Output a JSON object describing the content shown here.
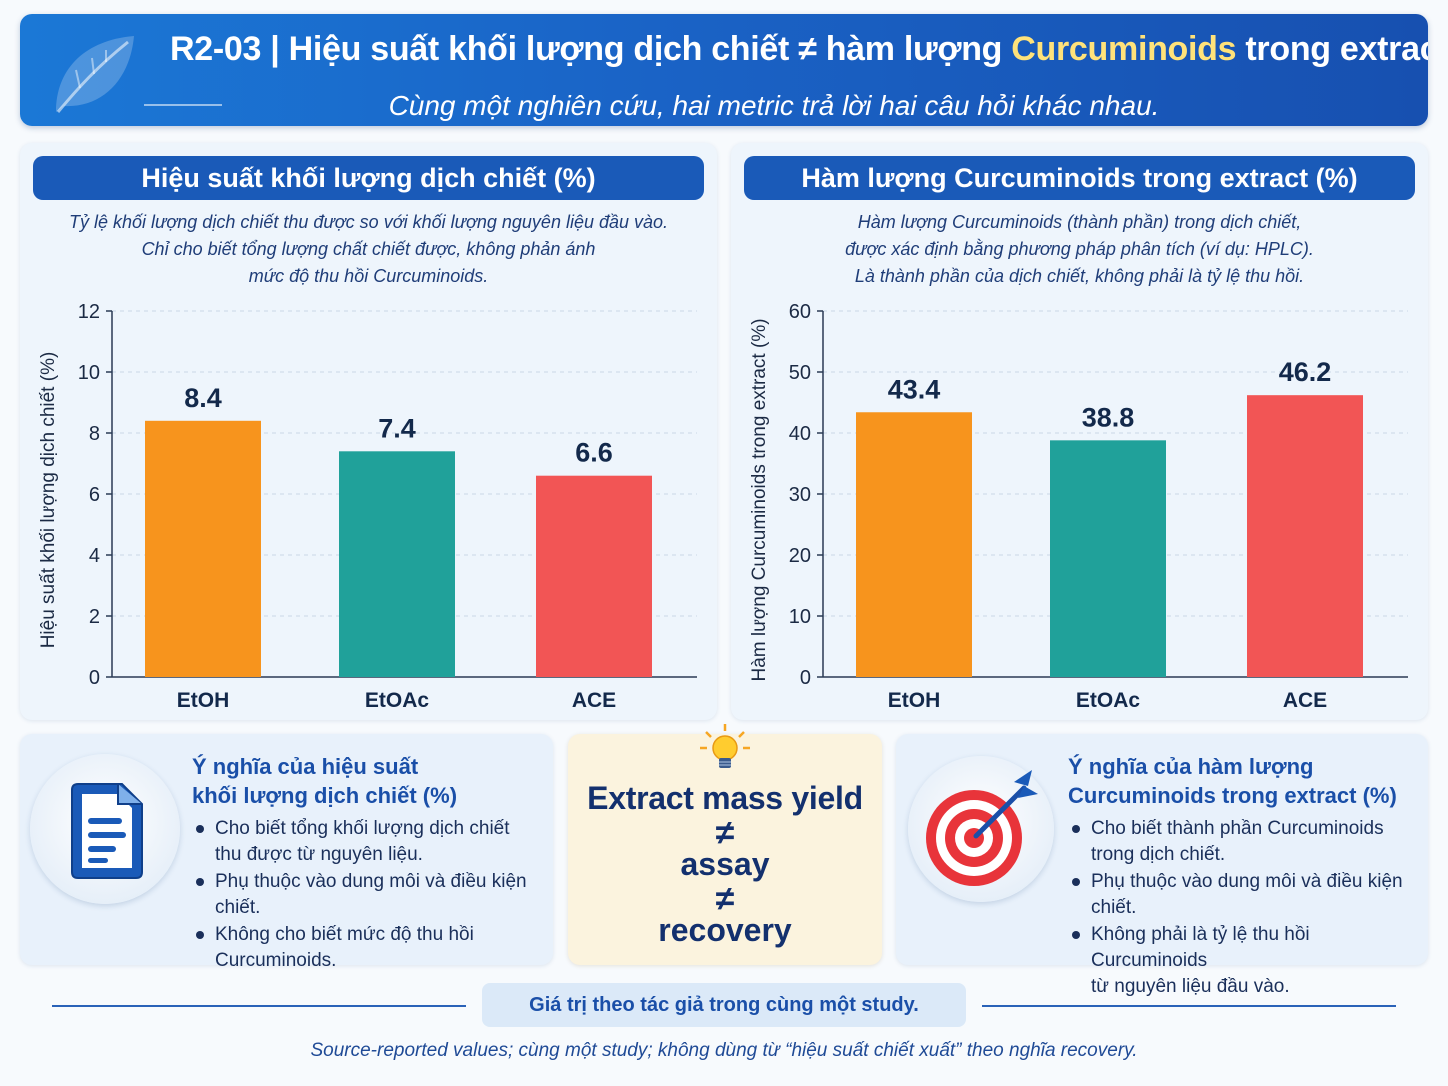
{
  "header": {
    "title_pre": "R2-03 | Hiệu suất khối lượng dịch chiết ≠ hàm lượng ",
    "title_highlight": "Curcuminoids",
    "title_post": " trong extract",
    "subtitle": "Cùng một nghiên cứu, hai metric trả lời hai câu hỏi khác nhau.",
    "icon": "leaf-icon"
  },
  "colors": {
    "header_blue": "#1a63c6",
    "title_highlight": "#ffe27a",
    "bar_etoh": "#f7941d",
    "bar_etoac": "#20a19a",
    "bar_ace": "#f25555"
  },
  "panels": {
    "left": {
      "heading": "Hiệu suất khối lượng dịch chiết (%)",
      "desc": [
        "Tỷ lệ khối lượng dịch chiết thu được so với khối lượng nguyên liệu đầu vào.",
        "Chỉ cho biết tổng lượng chất chiết được, không phản ánh",
        "mức độ thu hồi Curcuminoids."
      ]
    },
    "right": {
      "heading": "Hàm lượng Curcuminoids trong extract (%)",
      "desc": [
        "Hàm lượng Curcuminoids (thành phần) trong dịch chiết,",
        "được xác định bằng phương pháp phân tích (ví dụ: HPLC).",
        "Là thành phần của dịch chiết, không phải là tỷ lệ thu hồi."
      ]
    }
  },
  "chart_data": [
    {
      "type": "bar",
      "title": "Hiệu suất khối lượng dịch chiết (%)",
      "xlabel": "",
      "ylabel": "Hiệu suất khối lượng dịch chiết (%)",
      "categories": [
        "EtOH",
        "EtOAc",
        "ACE"
      ],
      "values": [
        8.4,
        7.4,
        6.6
      ],
      "data_labels": [
        "8.4",
        "7.4",
        "6.6"
      ],
      "colors": [
        "#f7941d",
        "#20a19a",
        "#f25555"
      ],
      "ylim": [
        0,
        12
      ],
      "yticks": [
        0,
        2,
        4,
        6,
        8,
        10,
        12
      ],
      "grid": true,
      "legend": "none"
    },
    {
      "type": "bar",
      "title": "Hàm lượng Curcuminoids trong extract (%)",
      "xlabel": "",
      "ylabel": "Hàm lượng Curcuminoids trong extract (%)",
      "categories": [
        "EtOH",
        "EtOAc",
        "ACE"
      ],
      "values": [
        43.4,
        38.8,
        46.2
      ],
      "data_labels": [
        "43.4",
        "38.8",
        "46.2"
      ],
      "colors": [
        "#f7941d",
        "#20a19a",
        "#f25555"
      ],
      "ylim": [
        0,
        60
      ],
      "yticks": [
        0,
        10,
        20,
        30,
        40,
        50,
        60
      ],
      "grid": true,
      "legend": "none"
    }
  ],
  "cards": {
    "left": {
      "icon": "document-icon",
      "title": [
        "Ý nghĩa của hiệu suất",
        "khối lượng dịch chiết (%)"
      ],
      "bullets": [
        [
          "Cho biết tổng khối lượng dịch chiết",
          "thu được từ nguyên liệu."
        ],
        [
          "Phụ thuộc vào dung môi và điều kiện chiết."
        ],
        [
          "Không cho biết mức độ thu hồi",
          "Curcuminoids."
        ]
      ]
    },
    "right": {
      "icon": "target-icon",
      "title": [
        "Ý nghĩa của hàm lượng",
        "Curcuminoids trong extract (%)"
      ],
      "bullets": [
        [
          "Cho biết thành phần Curcuminoids",
          "trong dịch chiết."
        ],
        [
          "Phụ thuộc vào dung môi và điều kiện chiết."
        ],
        [
          "Không phải là tỷ lệ thu hồi Curcuminoids",
          "từ nguyên liệu đầu vào."
        ]
      ]
    }
  },
  "callout": {
    "icon": "lightbulb-icon",
    "line1": "Extract mass yield",
    "neq": "≠",
    "line2": "assay",
    "line3": "recovery"
  },
  "footer": {
    "note": "Giá trị theo tác giả trong cùng một study.",
    "source": "Source-reported values; cùng một study; không dùng từ “hiệu suất chiết xuất” theo nghĩa recovery."
  }
}
